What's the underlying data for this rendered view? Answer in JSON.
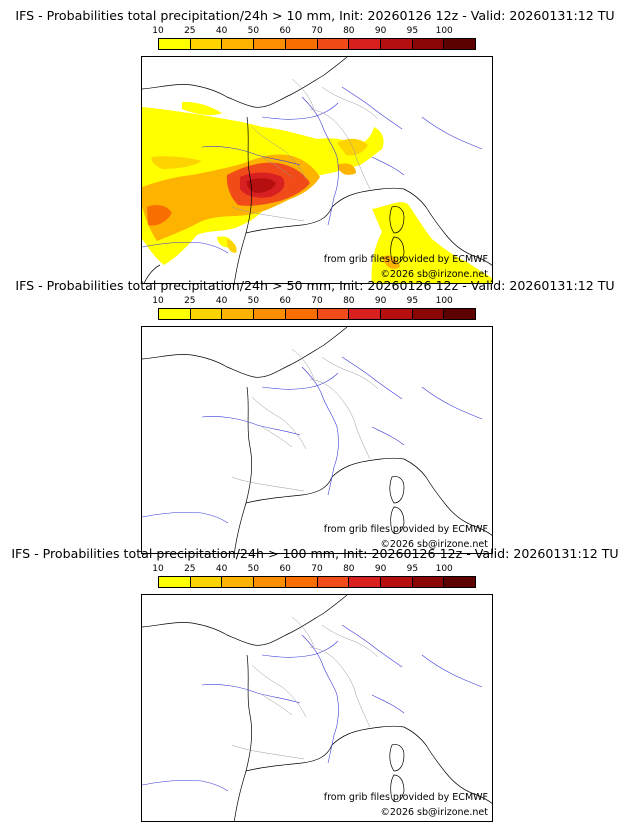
{
  "colorbar": {
    "ticks": [
      "10",
      "25",
      "40",
      "50",
      "60",
      "70",
      "80",
      "90",
      "95",
      "100"
    ],
    "colors": [
      "#ffff00",
      "#fed400",
      "#fdb300",
      "#fc8f00",
      "#f86e00",
      "#f14b1a",
      "#d82020",
      "#b50f0f",
      "#8a0505",
      "#5c0000"
    ]
  },
  "credits": {
    "source": "from grib files provided by ECMWF",
    "copyright": "©2026 sb@irizone.net"
  },
  "panels": [
    {
      "title": "IFS - Probabilities total precipitation/24h > 10 mm, Init: 20260126 12z - Valid: 20260131:12 TU",
      "has_field": true
    },
    {
      "title": "IFS - Probabilities total precipitation/24h > 50 mm, Init: 20260126 12z - Valid: 20260131:12 TU",
      "has_field": false
    },
    {
      "title": "IFS - Probabilities total precipitation/24h > 100 mm, Init: 20260126 12z - Valid: 20260131:12 TU",
      "has_field": false
    }
  ]
}
